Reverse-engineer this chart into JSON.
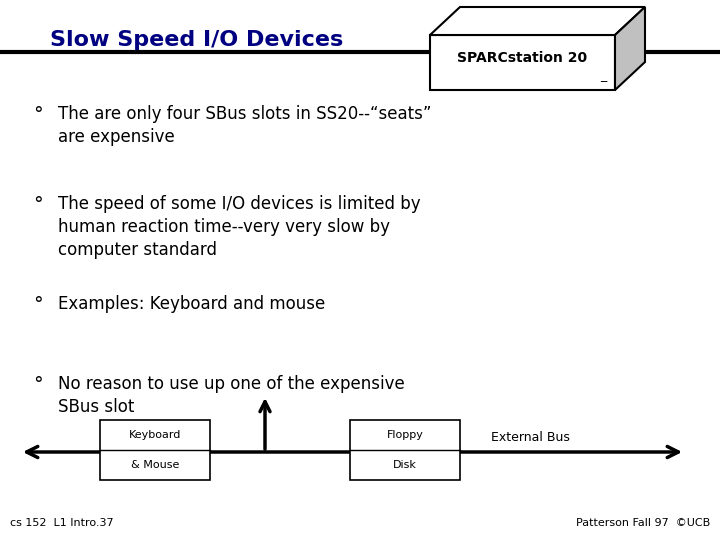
{
  "title": "Slow Speed I/O Devices",
  "bg_color": "#ffffff",
  "title_color": "#000080",
  "title_fontsize": 16,
  "sparc_label": "SPARCstation 20",
  "bullet_symbol": "°",
  "bullets": [
    "The are only four SBus slots in SS20--“seats”\nare expensive",
    "The speed of some I/O devices is limited by\nhuman reaction time--very very slow by\ncomputer standard",
    "Examples: Keyboard and mouse",
    "No reason to use up one of the expensive\nSBus slot"
  ],
  "bullet_fontsize": 12,
  "bullet_color": "#000000",
  "footer_left": "cs 152  L1 Intro.37",
  "footer_right": "Patterson Fall 97  ©UCB",
  "footer_fontsize": 8,
  "box1_line1": "Keyboard",
  "box1_line2": "& Mouse",
  "box2_line1": "Floppy",
  "box2_line2": "Disk",
  "ext_bus_label": "External Bus"
}
